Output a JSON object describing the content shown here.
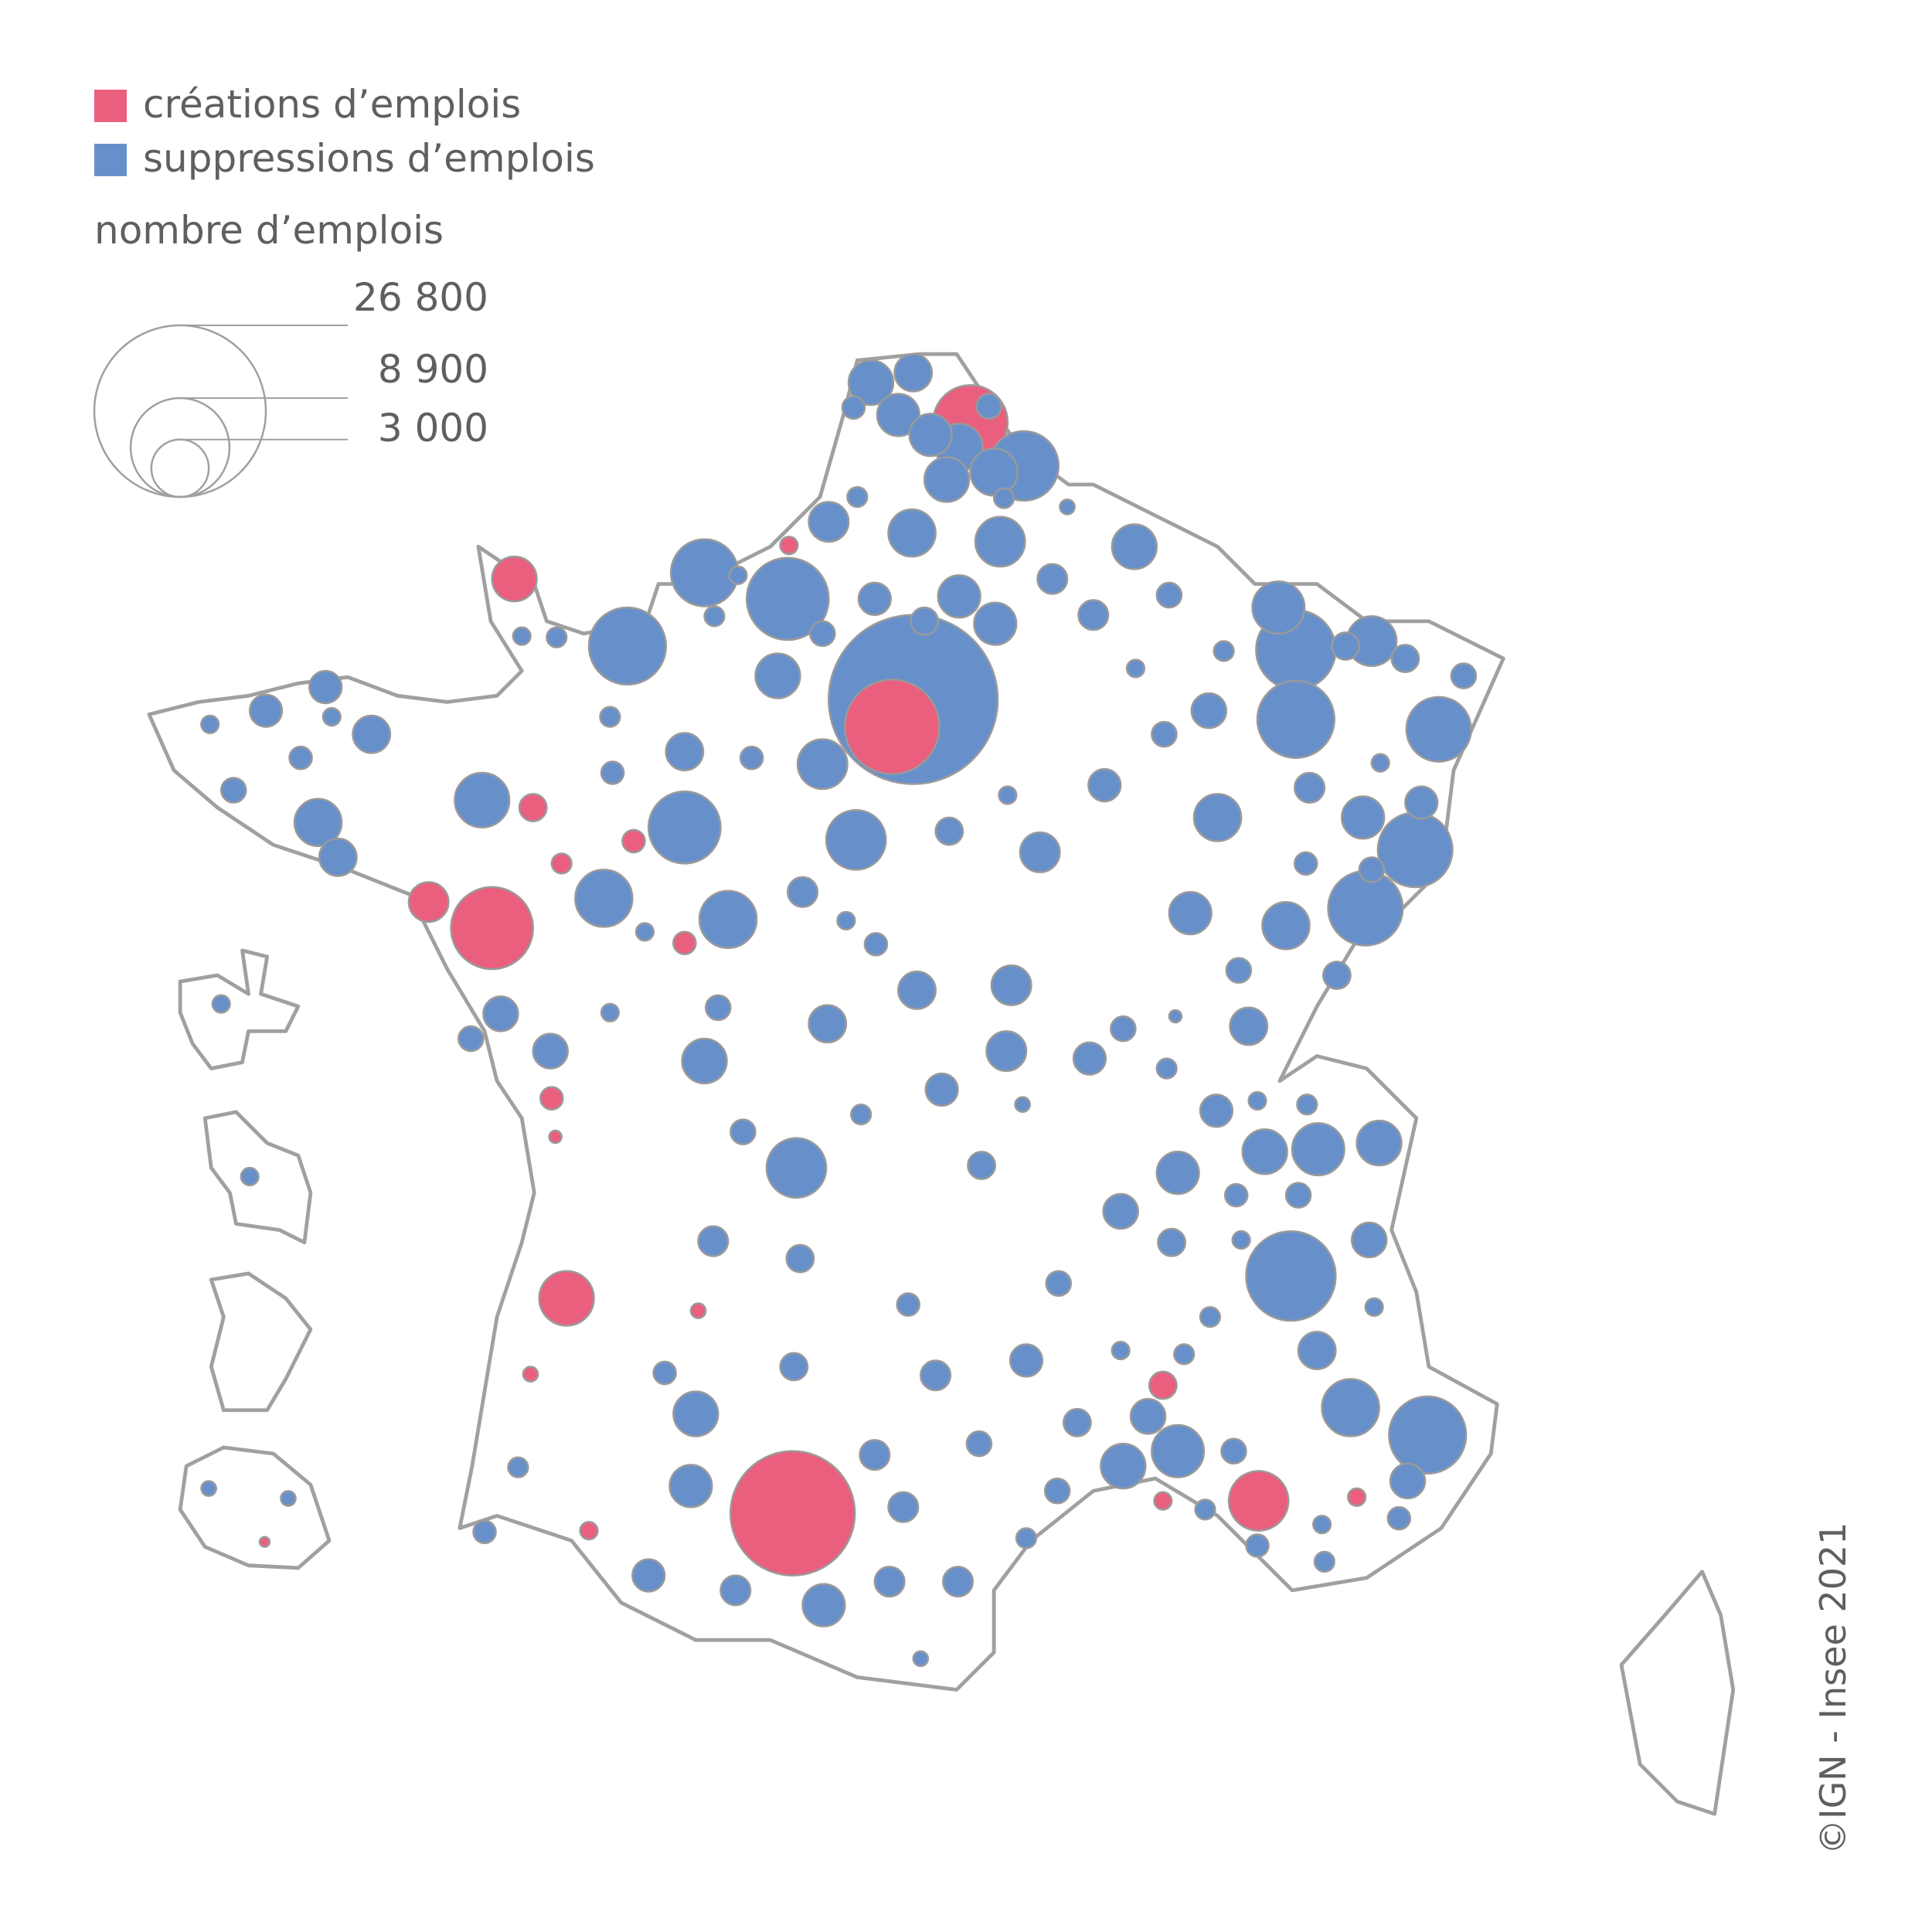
{
  "map": {
    "series": [
      {
        "name": "créations d’emplois",
        "color": "#ea5f7e",
        "values": [
          14080,
          6130,
          2720,
          8130,
          5070,
          3240,
          1440,
          1820,
          680,
          680,
          460,
          460,
          460,
          280,
          280,
          280,
          280,
          200,
          200,
          360,
          140,
          90
        ]
      },
      {
        "name": "suppressions d’emplois",
        "color": "#6790cb",
        "values": [
          26030,
          7300,
          5410,
          5070,
          5070,
          5410,
          5760,
          2480,
          3810,
          5410,
          4100,
          6130,
          4730,
          1820,
          1270,
          460,
          1630,
          1630,
          2030,
          560,
          4410,
          2030,
          1820,
          360,
          360,
          200,
          2030,
          2250,
          1820,
          1440,
          280,
          360,
          560,
          950,
          1630,
          1630,
          680,
          810,
          810,
          680,
          2250,
          680,
          560,
          560,
          360,
          280,
          280,
          950,
          560,
          1630,
          810,
          460,
          2030,
          1630,
          2030,
          560,
          1100,
          950,
          1440,
          280,
          680,
          3240,
          2250,
          1820,
          460,
          1270,
          360,
          460,
          2980,
          2980,
          810,
          280,
          460,
          1270,
          1440,
          1270,
          560,
          1820,
          280,
          280,
          2720,
          1270,
          2030,
          460,
          560,
          950,
          950,
          280,
          280,
          1270,
          360,
          280,
          280,
          1100,
          1100,
          560,
          1440,
          950,
          560,
          360,
          140,
          1270,
          560,
          680,
          950,
          200,
          950,
          360,
          280,
          2480,
          1820,
          1820,
          3240,
          680,
          1630,
          1100,
          460,
          560,
          680,
          280,
          1100,
          360,
          560,
          810,
          680,
          560,
          360,
          280,
          360,
          1270,
          280,
          460,
          810,
          950,
          680,
          460,
          1820,
          680,
          1100,
          2480,
          560,
          1820,
          560,
          2980,
          1100,
          280,
          460,
          360,
          460,
          360,
          360,
          810,
          560,
          810,
          1630,
          360,
          460,
          950,
          810,
          1630,
          810,
          810,
          200,
          280,
          200,
          200
        ]
      }
    ],
    "size_legend": {
      "title": "nombre d’emplois",
      "sizes": [
        {
          "value": 26800,
          "label": "26 800"
        },
        {
          "value": 8900,
          "label": "8 900"
        },
        {
          "value": 3000,
          "label": "3 000"
        }
      ]
    },
    "credit": "©IGN - Insee 2021"
  }
}
